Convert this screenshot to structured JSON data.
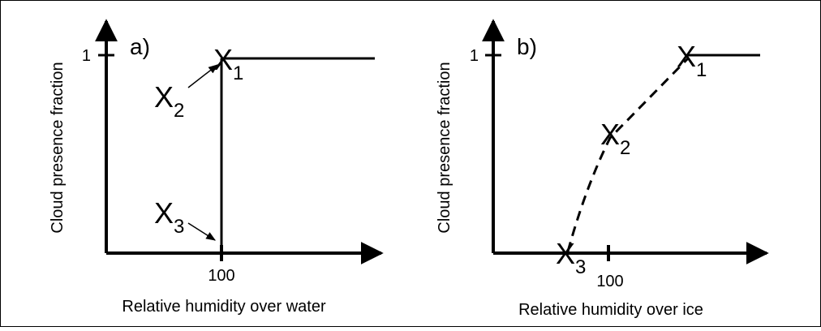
{
  "panels": [
    {
      "label": "a)",
      "y_axis_label": "Cloud presence fraction",
      "y_tick": "1",
      "x_tick": "100",
      "x_axis_label": "Relative humidity over water",
      "points": [
        {
          "letter": "X",
          "subscript": "1"
        },
        {
          "letter": "X",
          "subscript": "2"
        },
        {
          "letter": "X",
          "subscript": "3"
        }
      ]
    },
    {
      "label": "b)",
      "y_axis_label": "Cloud presence fraction",
      "y_tick": "1",
      "x_tick": "100",
      "x_axis_label": "Relative humidity over ice",
      "points": [
        {
          "letter": "X",
          "subscript": "1"
        },
        {
          "letter": "X",
          "subscript": "2"
        },
        {
          "letter": "X",
          "subscript": "3"
        }
      ]
    }
  ]
}
